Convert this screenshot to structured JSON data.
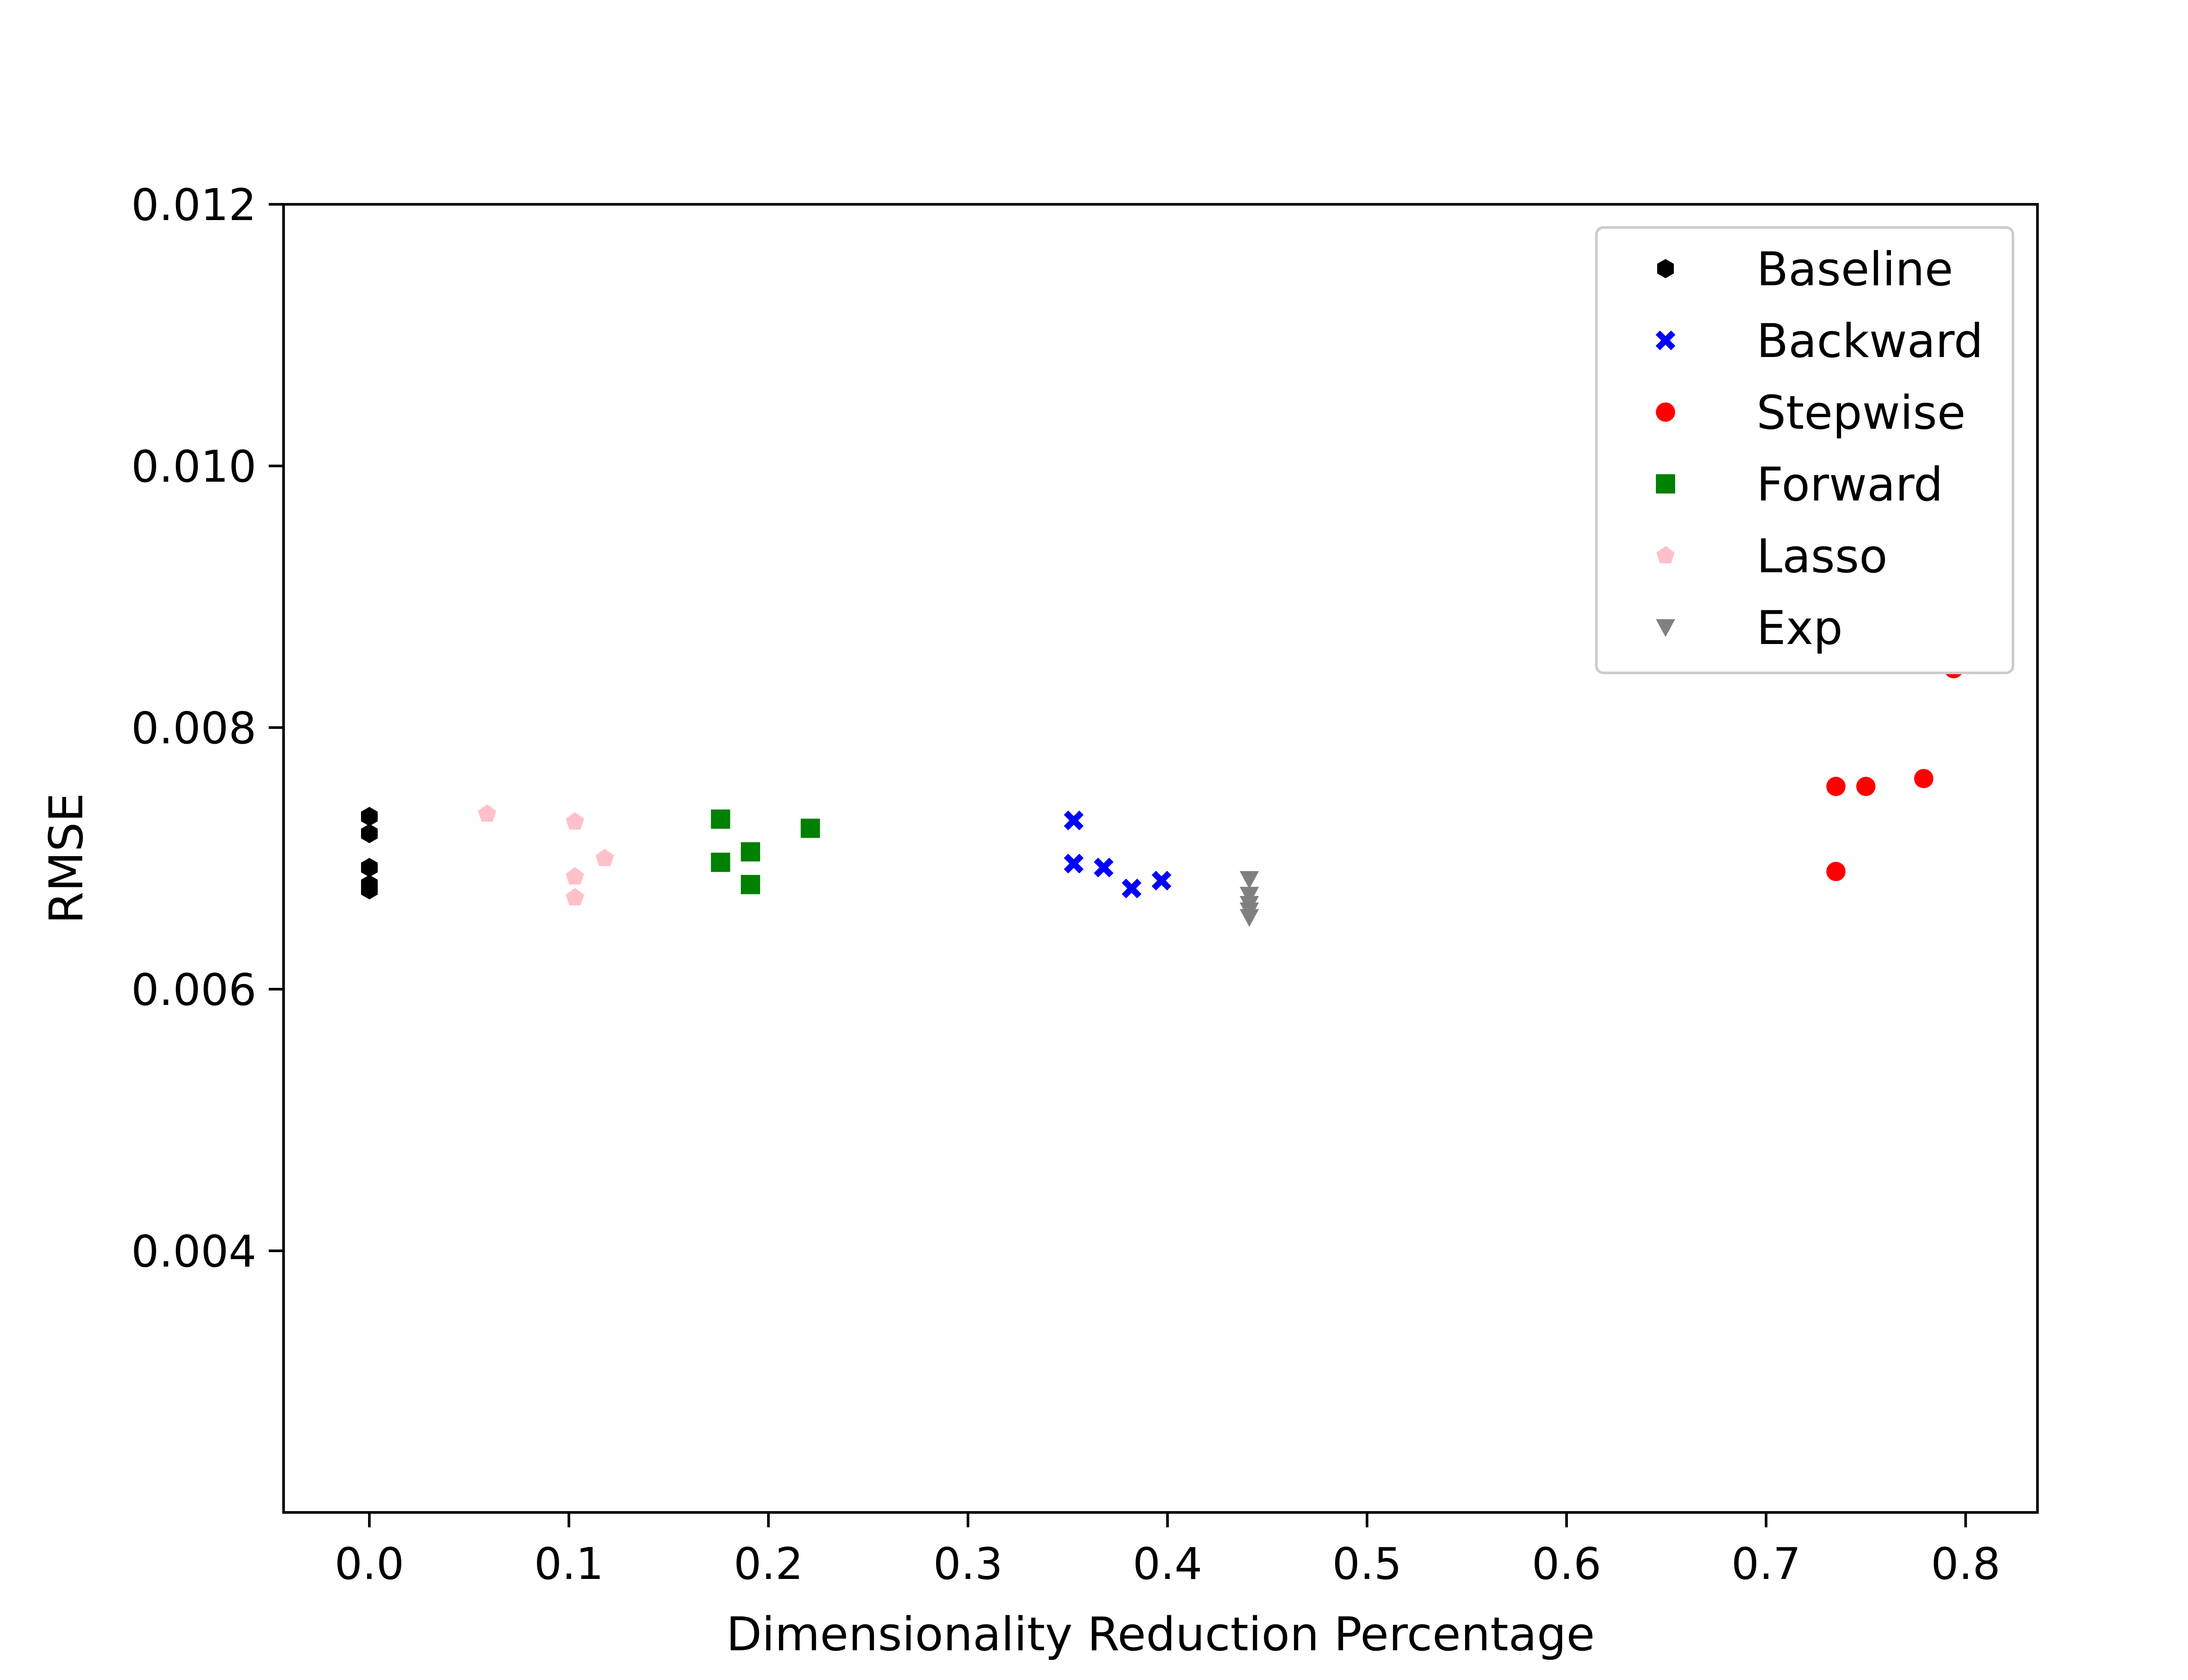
{
  "chart_data": {
    "type": "scatter",
    "title": "",
    "xlabel": "Dimensionality Reduction Percentage",
    "ylabel": "RMSE",
    "xlim": [
      -0.043,
      0.836
    ],
    "ylim": [
      0.002,
      0.012
    ],
    "xticks": [
      0.0,
      0.1,
      0.2,
      0.3,
      0.4,
      0.5,
      0.6,
      0.7,
      0.8
    ],
    "xtick_labels": [
      "0.0",
      "0.1",
      "0.2",
      "0.3",
      "0.4",
      "0.5",
      "0.6",
      "0.7",
      "0.8"
    ],
    "yticks": [
      0.004,
      0.006,
      0.008,
      0.01,
      0.012
    ],
    "ytick_labels": [
      "0.004",
      "0.006",
      "0.008",
      "0.010",
      "0.012"
    ],
    "grid": false,
    "legend_position": "top-right",
    "series": [
      {
        "name": "Baseline",
        "color": "#000000",
        "marker": "hexagon",
        "points": [
          [
            0.0,
            0.00732
          ],
          [
            0.0,
            0.00719
          ],
          [
            0.0,
            0.00693
          ],
          [
            0.0,
            0.0068
          ],
          [
            0.0,
            0.00676
          ]
        ]
      },
      {
        "name": "Backward",
        "color": "#0000ff",
        "marker": "x",
        "points": [
          [
            0.353,
            0.00729
          ],
          [
            0.353,
            0.00696
          ],
          [
            0.368,
            0.00693
          ],
          [
            0.382,
            0.00677
          ],
          [
            0.397,
            0.00683
          ]
        ]
      },
      {
        "name": "Stepwise",
        "color": "#ff0000",
        "marker": "circle",
        "points": [
          [
            0.735,
            0.00755
          ],
          [
            0.75,
            0.00755
          ],
          [
            0.779,
            0.00761
          ],
          [
            0.794,
            0.00845
          ],
          [
            0.735,
            0.0069
          ]
        ]
      },
      {
        "name": "Forward",
        "color": "#008000",
        "marker": "square",
        "points": [
          [
            0.176,
            0.0073
          ],
          [
            0.176,
            0.00697
          ],
          [
            0.191,
            0.00705
          ],
          [
            0.191,
            0.0068
          ],
          [
            0.221,
            0.00723
          ]
        ]
      },
      {
        "name": "Lasso",
        "color": "#ffc0cb",
        "marker": "pentagon",
        "points": [
          [
            0.059,
            0.00734
          ],
          [
            0.103,
            0.00728
          ],
          [
            0.118,
            0.007
          ],
          [
            0.103,
            0.00686
          ],
          [
            0.103,
            0.0067
          ]
        ]
      },
      {
        "name": "Exp",
        "color": "#808080",
        "marker": "triangle-down",
        "points": [
          [
            0.441,
            0.00684
          ],
          [
            0.441,
            0.00672
          ],
          [
            0.441,
            0.00665
          ],
          [
            0.441,
            0.0066
          ],
          [
            0.441,
            0.00655
          ]
        ]
      }
    ]
  }
}
